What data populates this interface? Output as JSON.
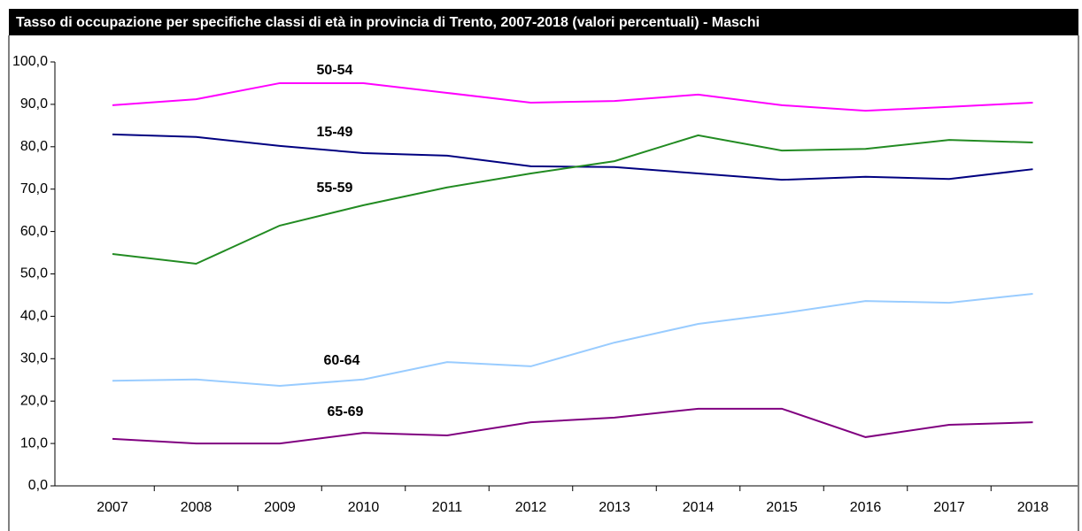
{
  "chart_data": {
    "type": "line",
    "title": "Tasso di occupazione per specifiche classi di età in provincia di Trento, 2007-2018 (valori percentuali) - Maschi",
    "categories": [
      "2007",
      "2008",
      "2009",
      "2010",
      "2011",
      "2012",
      "2013",
      "2014",
      "2015",
      "2016",
      "2017",
      "2018"
    ],
    "series": [
      {
        "name": "50-54",
        "color": "#ff00ff",
        "values": [
          89.8,
          91.2,
          95.0,
          95.0,
          92.7,
          90.4,
          90.8,
          92.3,
          89.8,
          88.5,
          89.4,
          90.4
        ]
      },
      {
        "name": "15-49",
        "color": "#000080",
        "values": [
          82.9,
          82.3,
          80.2,
          78.5,
          77.9,
          75.4,
          75.2,
          73.7,
          72.2,
          72.9,
          72.4,
          74.7
        ]
      },
      {
        "name": "55-59",
        "color": "#228b22",
        "values": [
          54.7,
          52.4,
          61.4,
          66.2,
          70.4,
          73.7,
          76.6,
          82.7,
          79.1,
          79.5,
          81.6,
          81.0
        ]
      },
      {
        "name": "60-64",
        "color": "#99ccff",
        "values": [
          24.8,
          25.1,
          23.6,
          25.1,
          29.2,
          28.2,
          33.8,
          38.2,
          40.7,
          43.6,
          43.2,
          45.3
        ]
      },
      {
        "name": "65-69",
        "color": "#800080",
        "values": [
          11.1,
          10.0,
          10.0,
          12.5,
          11.9,
          15.0,
          16.1,
          18.2,
          18.2,
          11.5,
          14.4,
          15.0
        ]
      }
    ],
    "ylim": [
      0,
      100
    ],
    "yticks": [
      {
        "value": 0,
        "label": "0,0"
      },
      {
        "value": 10,
        "label": "10,0"
      },
      {
        "value": 20,
        "label": "20,0"
      },
      {
        "value": 30,
        "label": "30,0"
      },
      {
        "value": 40,
        "label": "40,0"
      },
      {
        "value": 50,
        "label": "50,0"
      },
      {
        "value": 60,
        "label": "60,0"
      },
      {
        "value": 70,
        "label": "70,0"
      },
      {
        "value": 80,
        "label": "80,0"
      },
      {
        "value": 90,
        "label": "90,0"
      },
      {
        "value": 100,
        "label": "100,0"
      }
    ],
    "grid": false
  }
}
